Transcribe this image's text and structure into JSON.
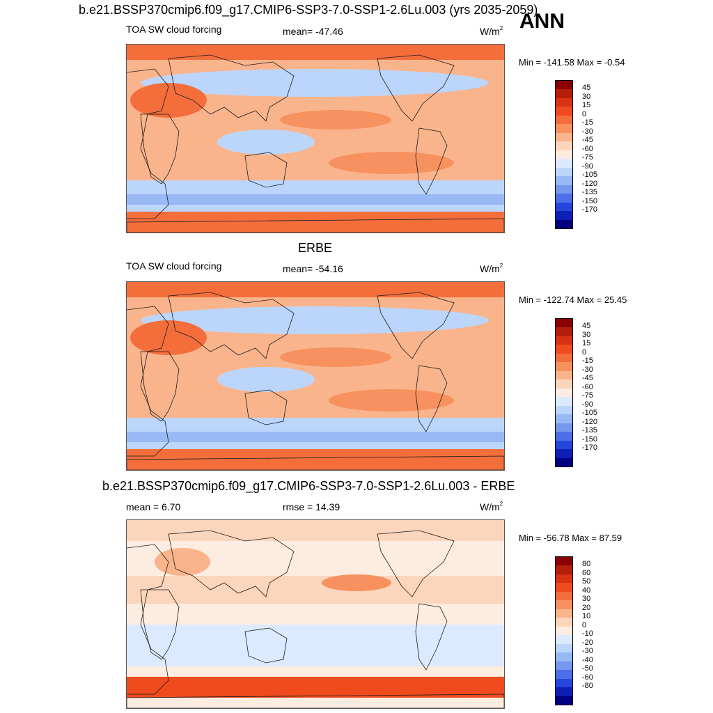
{
  "season": "ANN",
  "panels": [
    {
      "title": "b.e21.BSSP370cmip6.f09_g17.CMIP6-SSP3-7.0-SSP1-2.6Lu.003 (yrs 2035-2059)",
      "variable": "TOA SW cloud forcing",
      "stat_left": "",
      "stat_center": "mean= -47.46",
      "units": "W/m",
      "units_sup": "2",
      "minmax": "Min = -141.58 Max =  -0.54",
      "levels": [
        "45",
        "30",
        "15",
        "0",
        "-15",
        "-30",
        "-45",
        "-60",
        "-75",
        "-90",
        "-105",
        "-120",
        "-135",
        "-150",
        "-170"
      ],
      "palette": [
        "#8b0000",
        "#b41e0a",
        "#d83214",
        "#f04b1e",
        "#f46e3c",
        "#f7915f",
        "#f9b48c",
        "#fcd5bd",
        "#fdece0",
        "#dceaff",
        "#bcd6fb",
        "#98b9f5",
        "#7598ee",
        "#4d6fe8",
        "#2546dc",
        "#0e1fb8",
        "#000080"
      ],
      "background": "warm"
    },
    {
      "title": "ERBE",
      "variable": "TOA SW cloud forcing",
      "stat_left": "",
      "stat_center": "mean= -54.16",
      "units": "W/m",
      "units_sup": "2",
      "minmax": "Min = -122.74 Max =  25.45",
      "levels": [
        "45",
        "30",
        "15",
        "0",
        "-15",
        "-30",
        "-45",
        "-60",
        "-75",
        "-90",
        "-105",
        "-120",
        "-135",
        "-150",
        "-170"
      ],
      "palette": [
        "#8b0000",
        "#b41e0a",
        "#d83214",
        "#f04b1e",
        "#f46e3c",
        "#f7915f",
        "#f9b48c",
        "#fcd5bd",
        "#fdece0",
        "#dceaff",
        "#bcd6fb",
        "#98b9f5",
        "#7598ee",
        "#4d6fe8",
        "#2546dc",
        "#0e1fb8",
        "#000080"
      ],
      "background": "warm"
    },
    {
      "title": "b.e21.BSSP370cmip6.f09_g17.CMIP6-SSP3-7.0-SSP1-2.6Lu.003 - ERBE",
      "variable": "",
      "stat_left": "mean =   6.70",
      "stat_center": "rmse =  14.39",
      "units": "W/m",
      "units_sup": "2",
      "minmax": "Min = -56.78 Max =  87.59",
      "levels": [
        "80",
        "60",
        "50",
        "40",
        "30",
        "20",
        "10",
        "0",
        "-10",
        "-20",
        "-30",
        "-40",
        "-50",
        "-60",
        "-80"
      ],
      "palette": [
        "#8b0000",
        "#b41e0a",
        "#d83214",
        "#f04b1e",
        "#f46e3c",
        "#f7915f",
        "#f9b48c",
        "#fcd5bd",
        "#fdece0",
        "#dceaff",
        "#bcd6fb",
        "#98b9f5",
        "#7598ee",
        "#4d6fe8",
        "#2546dc",
        "#0e1fb8",
        "#000080"
      ],
      "background": "diff"
    }
  ]
}
